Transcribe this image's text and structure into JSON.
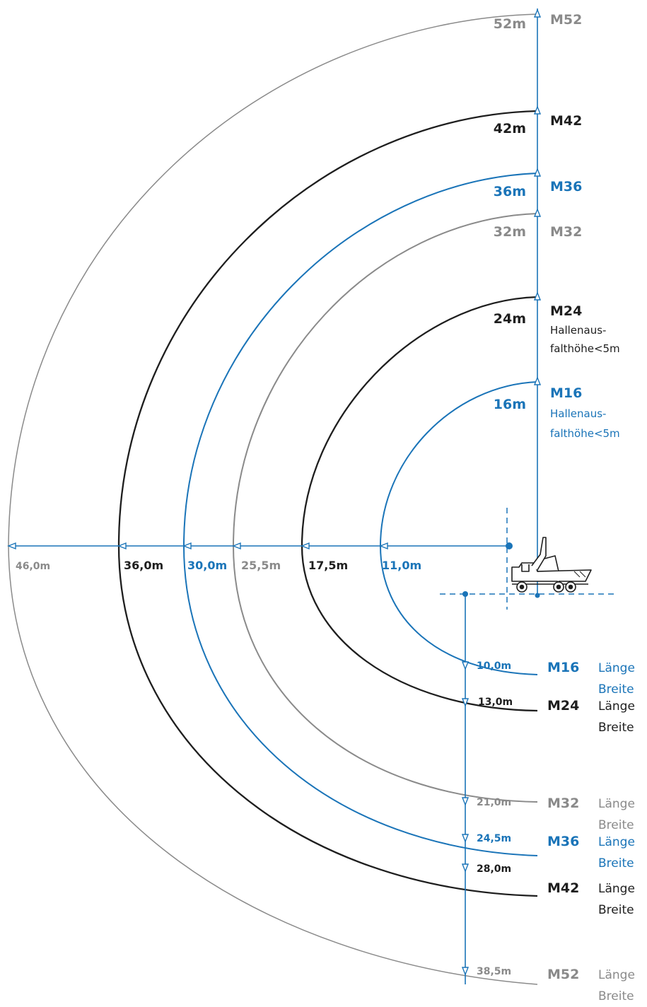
{
  "colors": {
    "gray": "#8a8a8a",
    "black": "#1e1e1e",
    "blue": "#1a74b8"
  },
  "models": {
    "M52": {
      "name": "M52",
      "color": "gray",
      "height_label": "52m",
      "reach_label": "46,0m",
      "length_label": "38,5m",
      "note": [
        "",
        ""
      ]
    },
    "M42": {
      "name": "M42",
      "color": "black",
      "height_label": "42m",
      "reach_label": "36,0m",
      "length_label": "28,0m",
      "note": [
        "",
        ""
      ]
    },
    "M36": {
      "name": "M36",
      "color": "blue",
      "height_label": "36m",
      "reach_label": "30,0m",
      "length_label": "24,5m",
      "note": [
        "",
        ""
      ]
    },
    "M32": {
      "name": "M32",
      "color": "gray",
      "height_label": "32m",
      "reach_label": "25,5m",
      "length_label": "21,0m",
      "note": [
        "",
        ""
      ]
    },
    "M24": {
      "name": "M24",
      "color": "black",
      "height_label": "24m",
      "reach_label": "17,5m",
      "length_label": "13,0m",
      "note": [
        "Hallenaus-",
        "falthöhe<5m"
      ]
    },
    "M16": {
      "name": "M16",
      "color": "blue",
      "height_label": "16m",
      "reach_label": "11,0m",
      "length_label": "10,0m",
      "note": [
        "Hallenaus-",
        "falthöhe<5m"
      ]
    }
  },
  "dimension_terms": {
    "length": "Länge",
    "width": "Breite"
  },
  "icons": {
    "truck": "concrete-pump-truck-icon"
  }
}
